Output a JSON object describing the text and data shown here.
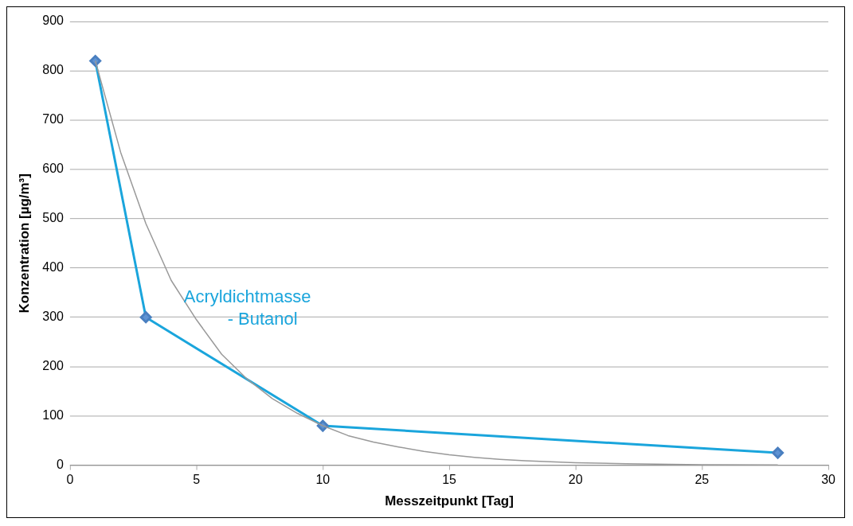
{
  "chart_data": {
    "type": "line",
    "xlabel": "Messzeitpunkt [Tag]",
    "ylabel": "Konzentration [µg/m³]",
    "xlim": [
      0,
      30
    ],
    "xticks": [
      0,
      5,
      10,
      15,
      20,
      25,
      30
    ],
    "ylim": [
      0,
      900
    ],
    "yticks": [
      0,
      100,
      200,
      300,
      400,
      500,
      600,
      700,
      800,
      900
    ],
    "grid": "y",
    "marker": "diamond",
    "line_style": "solid",
    "series": [
      {
        "name": "Acryldichtmasse - Butanol",
        "color": "#1aa5dc",
        "x": [
          1,
          3,
          10,
          28
        ],
        "values": [
          820,
          300,
          80,
          25
        ]
      },
      {
        "type": "line",
        "color": "#999999",
        "marker": "none",
        "x": [
          1,
          2,
          3,
          4,
          5,
          6,
          7,
          8,
          9,
          10,
          11,
          12,
          13,
          14,
          15,
          16,
          17,
          18,
          19,
          20,
          22,
          25,
          28
        ],
        "values": [
          820,
          635,
          490,
          375,
          295,
          225,
          175,
          135,
          105,
          80,
          60,
          47,
          37,
          28,
          21,
          16,
          12,
          9,
          7,
          5,
          3,
          1,
          0.5
        ]
      }
    ]
  }
}
